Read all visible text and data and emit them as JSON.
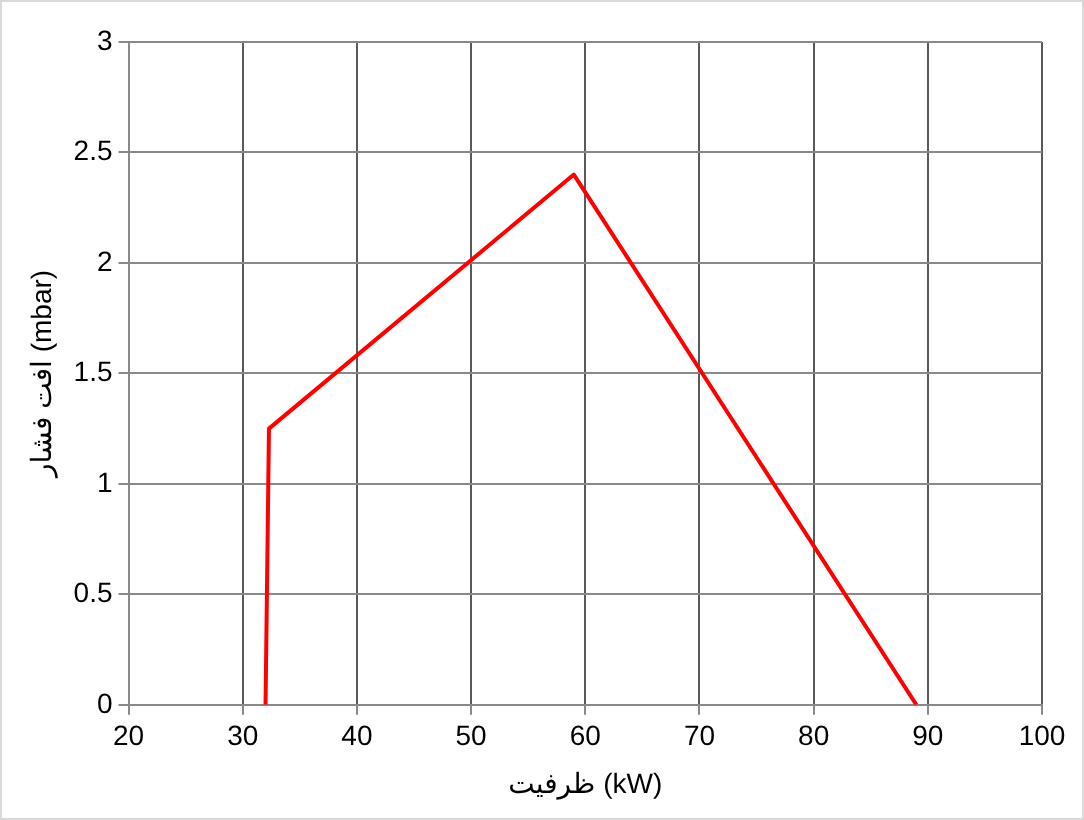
{
  "chart_data": {
    "type": "line",
    "xlabel": "ظرفیت (kW)",
    "ylabel": "افت فشار (mbar)",
    "series": [
      {
        "color": "#ff0000",
        "x": [
          32,
          32.3,
          59,
          89
        ],
        "values": [
          0,
          1.25,
          2.4,
          0
        ]
      }
    ],
    "xlim": [
      20,
      100
    ],
    "xticks": [
      20,
      30,
      40,
      50,
      60,
      70,
      80,
      90,
      100
    ],
    "ylim": [
      0,
      3
    ],
    "yticks": [
      0,
      0.5,
      1,
      1.5,
      2,
      2.5,
      3
    ],
    "grid": true,
    "legend": false,
    "marker": "none",
    "line_style": "solid"
  }
}
